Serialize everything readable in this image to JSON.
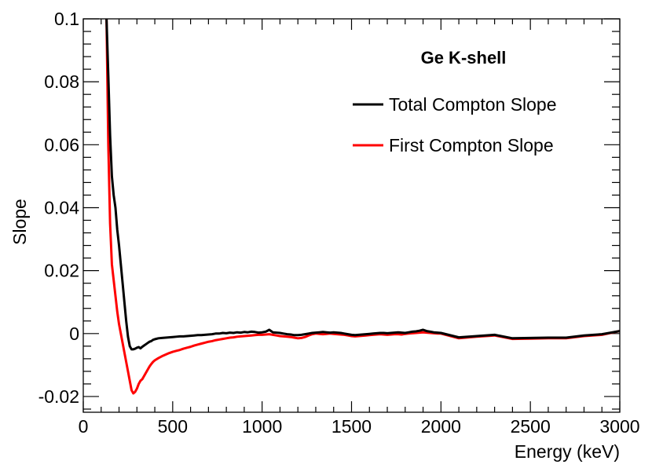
{
  "chart_data": {
    "type": "line",
    "title": "Ge K-shell",
    "xlabel": "Energy (keV)",
    "ylabel": "Slope",
    "xlim": [
      0,
      3000
    ],
    "ylim": [
      -0.025,
      0.1
    ],
    "xticks": [
      0,
      500,
      1000,
      1500,
      2000,
      2500,
      3000
    ],
    "xtick_labels": [
      "0",
      "500",
      "1000",
      "1500",
      "2000",
      "2500",
      "3000"
    ],
    "yticks": [
      -0.02,
      0,
      0.02,
      0.04,
      0.06,
      0.08,
      0.1
    ],
    "ytick_labels": [
      "-0.02",
      "0",
      "0.02",
      "0.04",
      "0.06",
      "0.08",
      "0.1"
    ],
    "grid": false,
    "legend_position": "top-right",
    "series": [
      {
        "name": "Total Compton Slope",
        "color": "#000000",
        "x": [
          130,
          140,
          150,
          160,
          170,
          180,
          190,
          200,
          210,
          220,
          230,
          240,
          250,
          260,
          270,
          280,
          290,
          300,
          310,
          320,
          330,
          340,
          350,
          360,
          370,
          380,
          390,
          400,
          420,
          440,
          460,
          480,
          500,
          520,
          540,
          560,
          580,
          600,
          620,
          640,
          660,
          680,
          700,
          720,
          740,
          760,
          780,
          800,
          820,
          840,
          860,
          880,
          900,
          920,
          940,
          960,
          980,
          1000,
          1020,
          1040,
          1060,
          1080,
          1100,
          1120,
          1140,
          1160,
          1180,
          1200,
          1220,
          1240,
          1260,
          1280,
          1300,
          1320,
          1340,
          1360,
          1380,
          1400,
          1420,
          1440,
          1460,
          1480,
          1500,
          1520,
          1540,
          1560,
          1580,
          1600,
          1620,
          1640,
          1660,
          1680,
          1700,
          1720,
          1740,
          1760,
          1780,
          1800,
          1820,
          1840,
          1860,
          1880,
          1900,
          1920,
          1940,
          1960,
          1980,
          2000,
          2100,
          2200,
          2300,
          2400,
          2500,
          2600,
          2700,
          2800,
          2900,
          3000
        ],
        "y": [
          0.1,
          0.082,
          0.063,
          0.05,
          0.044,
          0.04,
          0.033,
          0.028,
          0.022,
          0.016,
          0.01,
          0.004,
          -0.001,
          -0.004,
          -0.005,
          -0.005,
          -0.0048,
          -0.0045,
          -0.0043,
          -0.0047,
          -0.0042,
          -0.0038,
          -0.0034,
          -0.003,
          -0.0026,
          -0.0024,
          -0.002,
          -0.0018,
          -0.0015,
          -0.0014,
          -0.0013,
          -0.0012,
          -0.0011,
          -0.001,
          -0.0009,
          -0.0009,
          -0.0008,
          -0.0007,
          -0.0006,
          -0.0005,
          -0.0005,
          -0.0004,
          -0.0003,
          -0.0002,
          0.0,
          0.0,
          0.0002,
          0.0001,
          0.0003,
          0.0002,
          0.0004,
          0.0003,
          0.0005,
          0.0004,
          0.0006,
          0.0005,
          0.0003,
          0.0004,
          0.0006,
          0.0012,
          0.0004,
          0.0003,
          0.0002,
          0.0,
          -0.0002,
          -0.0003,
          -0.0005,
          -0.0005,
          -0.0004,
          -0.0002,
          0.0,
          0.0002,
          0.0003,
          0.0004,
          0.0005,
          0.0004,
          0.0003,
          0.0004,
          0.0003,
          0.0002,
          0.0,
          -0.0002,
          -0.0004,
          -0.0005,
          -0.0004,
          -0.0003,
          -0.0002,
          -0.0001,
          0.0,
          0.0001,
          0.0002,
          0.0002,
          0.0001,
          0.0002,
          0.0003,
          0.0004,
          0.0003,
          0.0002,
          0.0004,
          0.0006,
          0.0007,
          0.0009,
          0.0012,
          0.0008,
          0.0006,
          0.0004,
          0.0003,
          0.0002,
          -0.0012,
          -0.0008,
          -0.0004,
          -0.0015,
          -0.0014,
          -0.0013,
          -0.0013,
          -0.0006,
          -0.0002,
          0.0008
        ]
      },
      {
        "name": "First Compton Slope",
        "color": "#ff0000",
        "x": [
          130,
          140,
          150,
          160,
          170,
          180,
          190,
          200,
          210,
          220,
          230,
          240,
          250,
          260,
          270,
          280,
          290,
          300,
          310,
          320,
          330,
          340,
          350,
          360,
          370,
          380,
          390,
          400,
          420,
          440,
          460,
          480,
          500,
          520,
          540,
          560,
          580,
          600,
          620,
          640,
          660,
          680,
          700,
          720,
          740,
          760,
          780,
          800,
          820,
          840,
          860,
          880,
          900,
          920,
          940,
          960,
          980,
          1000,
          1020,
          1040,
          1060,
          1080,
          1100,
          1120,
          1140,
          1160,
          1180,
          1200,
          1220,
          1240,
          1260,
          1280,
          1300,
          1320,
          1340,
          1360,
          1380,
          1400,
          1420,
          1440,
          1460,
          1480,
          1500,
          1520,
          1540,
          1560,
          1580,
          1600,
          1620,
          1640,
          1660,
          1680,
          1700,
          1720,
          1740,
          1760,
          1780,
          1800,
          1820,
          1840,
          1860,
          1880,
          1900,
          1920,
          1940,
          1960,
          1980,
          2000,
          2100,
          2200,
          2300,
          2400,
          2500,
          2600,
          2700,
          2800,
          2900,
          3000
        ],
        "y": [
          0.1,
          0.06,
          0.035,
          0.022,
          0.017,
          0.012,
          0.007,
          0.003,
          0.0,
          -0.003,
          -0.006,
          -0.009,
          -0.012,
          -0.015,
          -0.018,
          -0.019,
          -0.0185,
          -0.0175,
          -0.016,
          -0.015,
          -0.0145,
          -0.0135,
          -0.0125,
          -0.0115,
          -0.0105,
          -0.0097,
          -0.009,
          -0.0085,
          -0.0078,
          -0.0072,
          -0.0067,
          -0.0062,
          -0.0058,
          -0.0055,
          -0.0052,
          -0.0048,
          -0.0045,
          -0.0042,
          -0.0038,
          -0.0035,
          -0.0032,
          -0.0029,
          -0.0026,
          -0.0024,
          -0.0021,
          -0.0019,
          -0.0017,
          -0.0015,
          -0.0013,
          -0.0012,
          -0.001,
          -0.0009,
          -0.0008,
          -0.0007,
          -0.0006,
          -0.0005,
          -0.0004,
          -0.0004,
          -0.0003,
          -0.0002,
          -0.0004,
          -0.0006,
          -0.0008,
          -0.0009,
          -0.001,
          -0.0011,
          -0.0013,
          -0.0015,
          -0.0014,
          -0.0011,
          -0.0006,
          -0.0002,
          0.0,
          -0.0001,
          -0.0002,
          -0.0001,
          0.0,
          -0.0001,
          -0.0002,
          -0.0003,
          -0.0004,
          -0.0006,
          -0.0008,
          -0.0009,
          -0.0008,
          -0.0007,
          -0.0006,
          -0.0005,
          -0.0004,
          -0.0003,
          -0.0002,
          -0.0003,
          -0.0004,
          -0.0003,
          -0.0002,
          -0.0002,
          -0.0003,
          -0.0001,
          0.0,
          0.0001,
          0.0002,
          0.0003,
          0.0004,
          0.0003,
          0.0002,
          0.0001,
          0.0,
          0.0,
          -0.0015,
          -0.001,
          -0.0006,
          -0.0017,
          -0.0016,
          -0.0015,
          -0.0015,
          -0.0008,
          -0.0004,
          0.0008
        ]
      }
    ]
  }
}
